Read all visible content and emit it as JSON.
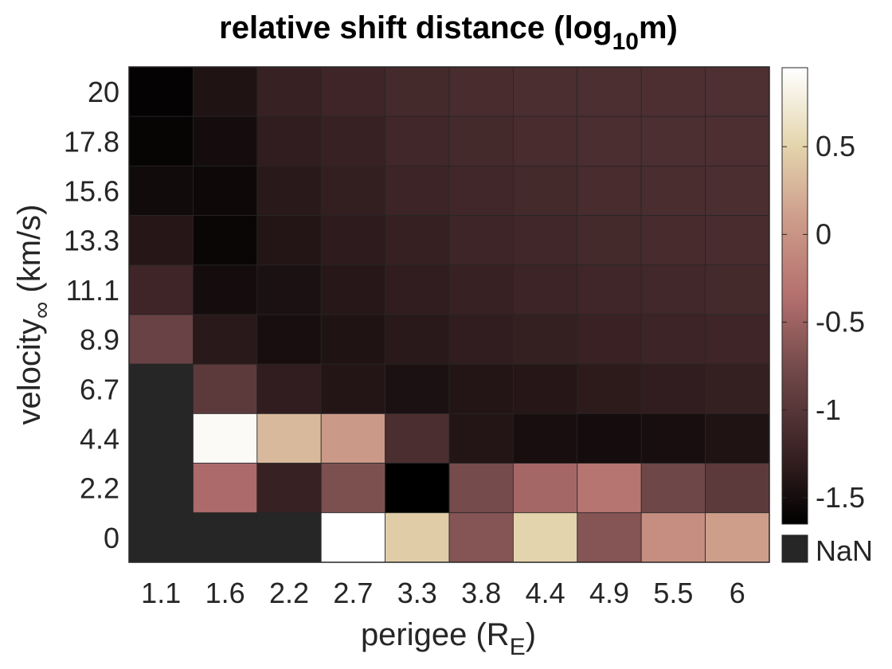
{
  "chart_data": {
    "type": "heatmap",
    "title": {
      "main": "relative shift distance (log",
      "sub": "10",
      "tail": "m)"
    },
    "xlabel": {
      "main": "perigee (R",
      "sub": "E",
      "tail": ")"
    },
    "ylabel": {
      "main": "velocity",
      "sub": "∞",
      "tail": " (km/s)"
    },
    "x_ticks": [
      "1.1",
      "1.6",
      "2.2",
      "2.7",
      "3.3",
      "3.8",
      "4.4",
      "4.9",
      "5.5",
      "6"
    ],
    "y_ticks": [
      "20",
      "17.8",
      "15.6",
      "13.3",
      "11.1",
      "8.9",
      "6.7",
      "4.4",
      "2.2",
      "0"
    ],
    "values": [
      [
        -1.62,
        -1.42,
        -1.25,
        -1.2,
        -1.15,
        -1.12,
        -1.1,
        -1.09,
        -1.08,
        -1.07
      ],
      [
        -1.6,
        -1.5,
        -1.3,
        -1.25,
        -1.18,
        -1.15,
        -1.12,
        -1.1,
        -1.09,
        -1.08
      ],
      [
        -1.52,
        -1.55,
        -1.35,
        -1.28,
        -1.22,
        -1.18,
        -1.15,
        -1.12,
        -1.11,
        -1.1
      ],
      [
        -1.38,
        -1.58,
        -1.4,
        -1.32,
        -1.26,
        -1.21,
        -1.18,
        -1.15,
        -1.13,
        -1.12
      ],
      [
        -1.2,
        -1.5,
        -1.45,
        -1.37,
        -1.3,
        -1.25,
        -1.22,
        -1.19,
        -1.17,
        -1.15
      ],
      [
        -0.85,
        -1.35,
        -1.48,
        -1.42,
        -1.35,
        -1.3,
        -1.27,
        -1.24,
        -1.22,
        -1.2
      ],
      [
        null,
        -0.95,
        -1.3,
        -1.4,
        -1.45,
        -1.4,
        -1.38,
        -1.33,
        -1.3,
        -1.27
      ],
      [
        null,
        0.9,
        0.3,
        0.05,
        -1.1,
        -1.4,
        -1.48,
        -1.5,
        -1.48,
        -1.42
      ],
      [
        null,
        -0.4,
        -1.25,
        -0.7,
        -1.65,
        -0.75,
        -0.45,
        -0.3,
        -0.8,
        -0.95
      ],
      [
        null,
        null,
        null,
        1.0,
        0.45,
        -0.65,
        0.5,
        -0.65,
        -0.05,
        0.1
      ]
    ],
    "colorbar": {
      "range": [
        -1.65,
        0.95
      ],
      "ticks": [
        0.5,
        0,
        -0.5,
        -1,
        -1.5
      ],
      "tick_labels": [
        "0.5",
        "0",
        "-0.5",
        "-1",
        "-1.5"
      ],
      "colors": [
        "#000000",
        "#3d2426",
        "#704849",
        "#b4706e",
        "#cd9c8a",
        "#e4d6ae",
        "#ffffff"
      ]
    },
    "nan_label": "NaN",
    "nan_color": "#262626",
    "grid": false
  }
}
